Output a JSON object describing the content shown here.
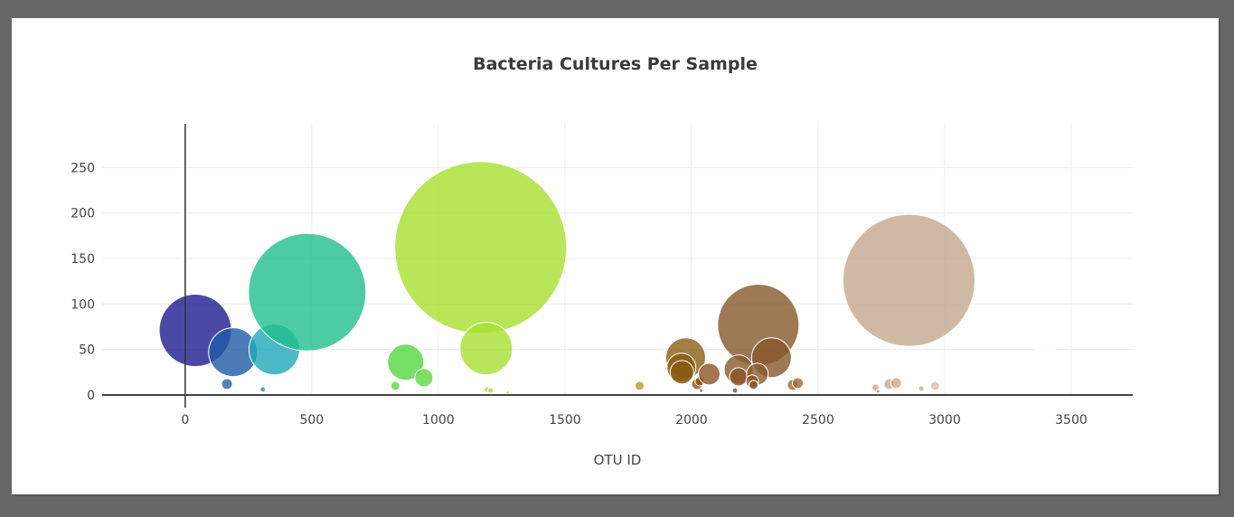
{
  "chart_data": {
    "type": "scatter",
    "subtype": "bubble",
    "title": "Bacteria Cultures Per Sample",
    "xlabel": "OTU ID",
    "ylabel": "",
    "xlim": [
      -328,
      3743
    ],
    "ylim": [
      0,
      298
    ],
    "x_ticks": [
      0,
      500,
      1000,
      1500,
      2000,
      2500,
      3000,
      3500
    ],
    "y_ticks": [
      0,
      50,
      100,
      150,
      200,
      250
    ],
    "grid": true,
    "legend": false,
    "colorscale": "Earth (blue → green → yellow-green → brown → beige)",
    "points": [
      {
        "x": 40,
        "y": 71,
        "r": 40,
        "color": "#1e1b8f"
      },
      {
        "x": 189,
        "y": 47,
        "r": 27,
        "color": "#1e5ba6"
      },
      {
        "x": 165,
        "y": 12,
        "r": 6,
        "color": "#2a62a8"
      },
      {
        "x": 307,
        "y": 6,
        "r": 3,
        "color": "#2596a8"
      },
      {
        "x": 352,
        "y": 50,
        "r": 28,
        "color": "#1fa9b8"
      },
      {
        "x": 482,
        "y": 113,
        "r": 65,
        "color": "#21bf8c"
      },
      {
        "x": 871,
        "y": 36,
        "r": 20,
        "color": "#55d63e"
      },
      {
        "x": 943,
        "y": 19,
        "r": 10,
        "color": "#5fd840"
      },
      {
        "x": 830,
        "y": 10,
        "r": 5,
        "color": "#5fd840"
      },
      {
        "x": 1167,
        "y": 162,
        "r": 95,
        "color": "#a6e02e"
      },
      {
        "x": 1189,
        "y": 51,
        "r": 29,
        "color": "#a8e032"
      },
      {
        "x": 1191,
        "y": 6,
        "r": 3,
        "color": "#a8e032"
      },
      {
        "x": 1206,
        "y": 5,
        "r": 3,
        "color": "#a8e032"
      },
      {
        "x": 1274,
        "y": 3,
        "r": 2,
        "color": "#b0e03a"
      },
      {
        "x": 1795,
        "y": 10,
        "r": 5,
        "color": "#b59a2a"
      },
      {
        "x": 1977,
        "y": 41,
        "r": 22,
        "color": "#8a5e14"
      },
      {
        "x": 1960,
        "y": 30,
        "r": 16,
        "color": "#8a5a14"
      },
      {
        "x": 1962,
        "y": 25,
        "r": 13,
        "color": "#8a5a10"
      },
      {
        "x": 2022,
        "y": 12,
        "r": 6,
        "color": "#8a5014"
      },
      {
        "x": 2032,
        "y": 15,
        "r": 5,
        "color": "#8a5014"
      },
      {
        "x": 2038,
        "y": 5,
        "r": 2,
        "color": "#8a5014"
      },
      {
        "x": 2070,
        "y": 23,
        "r": 12,
        "color": "#8b5524"
      },
      {
        "x": 2264,
        "y": 77,
        "r": 45,
        "color": "#86572a"
      },
      {
        "x": 2316,
        "y": 41,
        "r": 22,
        "color": "#86572a"
      },
      {
        "x": 2186,
        "y": 28,
        "r": 16,
        "color": "#8a5a2a"
      },
      {
        "x": 2186,
        "y": 20,
        "r": 10,
        "color": "#8a5224"
      },
      {
        "x": 2260,
        "y": 23,
        "r": 12,
        "color": "#8a5a2a"
      },
      {
        "x": 2240,
        "y": 15,
        "r": 7,
        "color": "#8a5224"
      },
      {
        "x": 2245,
        "y": 11,
        "r": 5,
        "color": "#8a5224"
      },
      {
        "x": 2172,
        "y": 5,
        "r": 3,
        "color": "#8a5224"
      },
      {
        "x": 2400,
        "y": 11,
        "r": 6,
        "color": "#9a6a40"
      },
      {
        "x": 2420,
        "y": 13,
        "r": 6,
        "color": "#9a6a40"
      },
      {
        "x": 2859,
        "y": 126,
        "r": 73,
        "color": "#c4a78d"
      },
      {
        "x": 2727,
        "y": 8,
        "r": 4,
        "color": "#c9ad92"
      },
      {
        "x": 2737,
        "y": 4,
        "r": 2,
        "color": "#a88b70"
      },
      {
        "x": 2782,
        "y": 12,
        "r": 6,
        "color": "#c4a78d"
      },
      {
        "x": 2808,
        "y": 13,
        "r": 6,
        "color": "#c9ad92"
      },
      {
        "x": 2908,
        "y": 7,
        "r": 3,
        "color": "#c9ad92"
      },
      {
        "x": 2962,
        "y": 10,
        "r": 5,
        "color": "#d3bea8"
      },
      {
        "x": 3400,
        "y": 40,
        "r": 15,
        "color": "#ffffff"
      }
    ]
  }
}
